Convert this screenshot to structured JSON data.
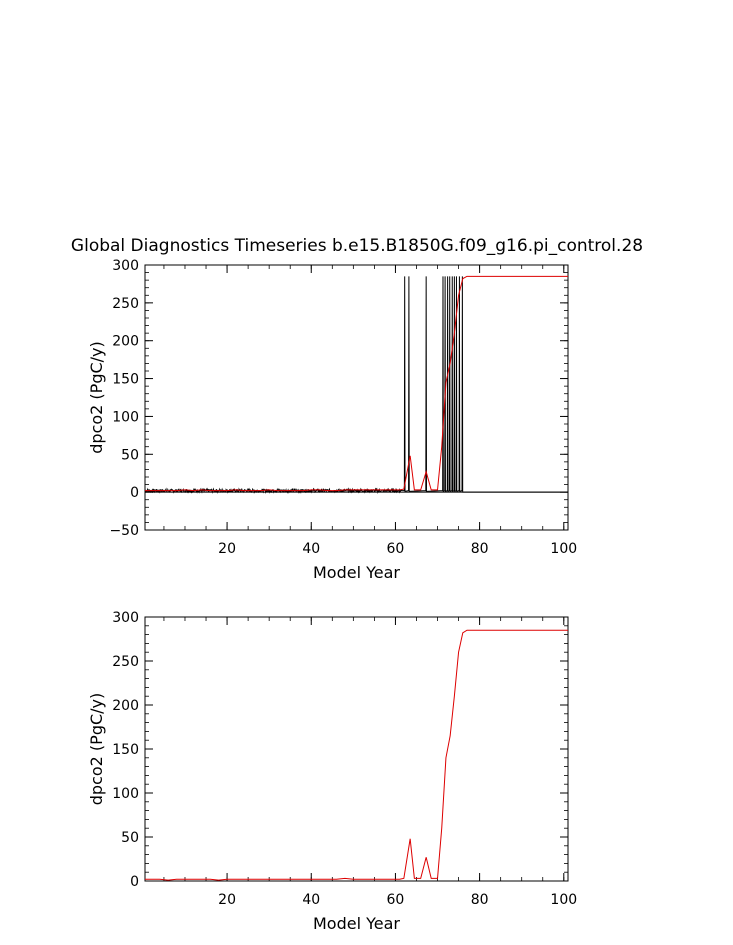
{
  "chart_data": [
    {
      "type": "line",
      "title": "Global Diagnostics Timeseries b.e15.B1850G.f09_g16.pi_control.28",
      "xlabel": "Model Year",
      "ylabel": "dpco2 (PgC/y)",
      "xlim": [
        0.5,
        101
      ],
      "ylim": [
        -50,
        300
      ],
      "x_ticks": [
        20,
        40,
        60,
        80,
        100
      ],
      "y_ticks": [
        -50,
        0,
        50,
        100,
        150,
        200,
        250,
        300
      ],
      "zero_line": true,
      "grid": false,
      "series": [
        {
          "color": "#000000",
          "description_values": "monthly",
          "baseline_start": 0.5,
          "baseline_end": 61.5,
          "baseline_level": 2,
          "spikes": [
            [
              62.2,
              285
            ],
            [
              63.2,
              285
            ],
            [
              67.3,
              285
            ],
            [
              71.3,
              285
            ],
            [
              71.8,
              285
            ],
            [
              72.4,
              285
            ],
            [
              72.9,
              285
            ],
            [
              73.5,
              285
            ],
            [
              74.0,
              285
            ],
            [
              74.5,
              285
            ],
            [
              75.2,
              285
            ],
            [
              75.9,
              285
            ]
          ],
          "end_spike": 76.0,
          "end_x": 101
        },
        {
          "color": "#dd0000",
          "x": [
            0.5,
            2,
            4,
            6,
            8,
            10,
            12,
            14,
            16,
            18,
            20,
            22,
            24,
            26,
            28,
            30,
            32,
            34,
            36,
            38,
            40,
            42,
            44,
            46,
            48,
            50,
            52,
            54,
            56,
            58,
            60,
            61,
            62,
            63.5,
            64.5,
            66,
            67.3,
            68.5,
            70,
            71,
            72,
            73,
            74,
            75,
            76,
            77,
            80,
            85,
            90,
            95,
            101
          ],
          "y": [
            2,
            2,
            2,
            2,
            2,
            3,
            2,
            3,
            2,
            2,
            2,
            3,
            2,
            2,
            2,
            3,
            2,
            2,
            2,
            2,
            3,
            3,
            2,
            2,
            3,
            3,
            3,
            3,
            3,
            3,
            3,
            3,
            4,
            48,
            3,
            3,
            27,
            3,
            3,
            60,
            145,
            170,
            210,
            260,
            282,
            285,
            285,
            285,
            285,
            285,
            285
          ]
        }
      ]
    },
    {
      "type": "line",
      "title": "",
      "xlabel": "Model Year",
      "ylabel": "dpco2 (PgC/y)",
      "xlim": [
        0.5,
        101
      ],
      "ylim": [
        0,
        300
      ],
      "x_ticks": [
        20,
        40,
        60,
        80,
        100
      ],
      "y_ticks": [
        0,
        50,
        100,
        150,
        200,
        250,
        300
      ],
      "grid": false,
      "series": [
        {
          "color": "#dd0000",
          "x": [
            0.5,
            2,
            4,
            6,
            8,
            10,
            12,
            14,
            16,
            18,
            20,
            22,
            24,
            26,
            28,
            30,
            32,
            34,
            36,
            38,
            40,
            42,
            44,
            46,
            48,
            50,
            52,
            54,
            56,
            58,
            60,
            61,
            62,
            63.5,
            64.5,
            66,
            67.3,
            68.5,
            70,
            71,
            72,
            73,
            74,
            75,
            76,
            77,
            80,
            85,
            90,
            95,
            101
          ],
          "y": [
            2,
            2,
            2,
            1,
            2,
            2,
            2,
            2,
            2,
            1,
            2,
            2,
            2,
            2,
            2,
            2,
            2,
            2,
            2,
            2,
            2,
            2,
            2,
            2,
            3,
            2,
            2,
            2,
            2,
            2,
            2,
            2,
            3,
            48,
            3,
            3,
            27,
            3,
            3,
            60,
            140,
            165,
            210,
            260,
            282,
            285,
            285,
            285,
            285,
            285,
            285
          ]
        }
      ]
    }
  ]
}
